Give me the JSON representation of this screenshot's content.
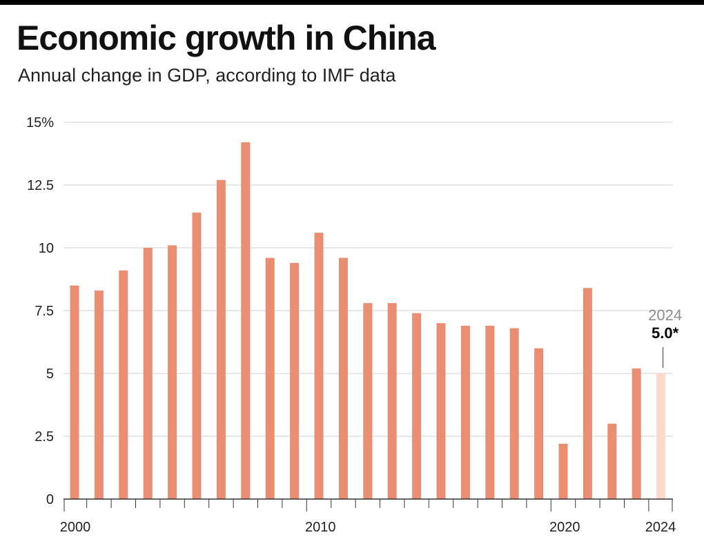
{
  "chart_data": {
    "type": "bar",
    "title": "Economic growth in China",
    "subtitle": "Annual change in GDP, according to IMF data",
    "xlabel": "",
    "ylabel": "",
    "ylim": [
      0,
      15
    ],
    "y_ticks": [
      0,
      2.5,
      5,
      7.5,
      10,
      12.5,
      15
    ],
    "y_tick_labels": [
      "0",
      "2.5",
      "5",
      "7.5",
      "10",
      "12.5",
      "15%"
    ],
    "x_tick_labels": [
      "2000",
      "2010",
      "2020",
      "2024"
    ],
    "x_tick_years": [
      2000,
      2010,
      2020,
      2024
    ],
    "grid": true,
    "categories": [
      2000,
      2001,
      2002,
      2003,
      2004,
      2005,
      2006,
      2007,
      2008,
      2009,
      2010,
      2011,
      2012,
      2013,
      2014,
      2015,
      2016,
      2017,
      2018,
      2019,
      2020,
      2021,
      2022,
      2023,
      2024
    ],
    "values": [
      8.5,
      8.3,
      9.1,
      10.0,
      10.1,
      11.4,
      12.7,
      14.2,
      9.6,
      9.4,
      10.6,
      9.6,
      7.8,
      7.8,
      7.4,
      7.0,
      6.9,
      6.9,
      6.8,
      6.0,
      2.2,
      8.4,
      3.0,
      5.2,
      5.0
    ],
    "projected_years": [
      2024
    ],
    "annotation": {
      "year_label": "2024",
      "value_label": "5.0*"
    },
    "colors": {
      "bar": "#e98d73",
      "projected": "#fdd9cc",
      "grid": "#d2d2d2",
      "axis": "#333333"
    }
  }
}
